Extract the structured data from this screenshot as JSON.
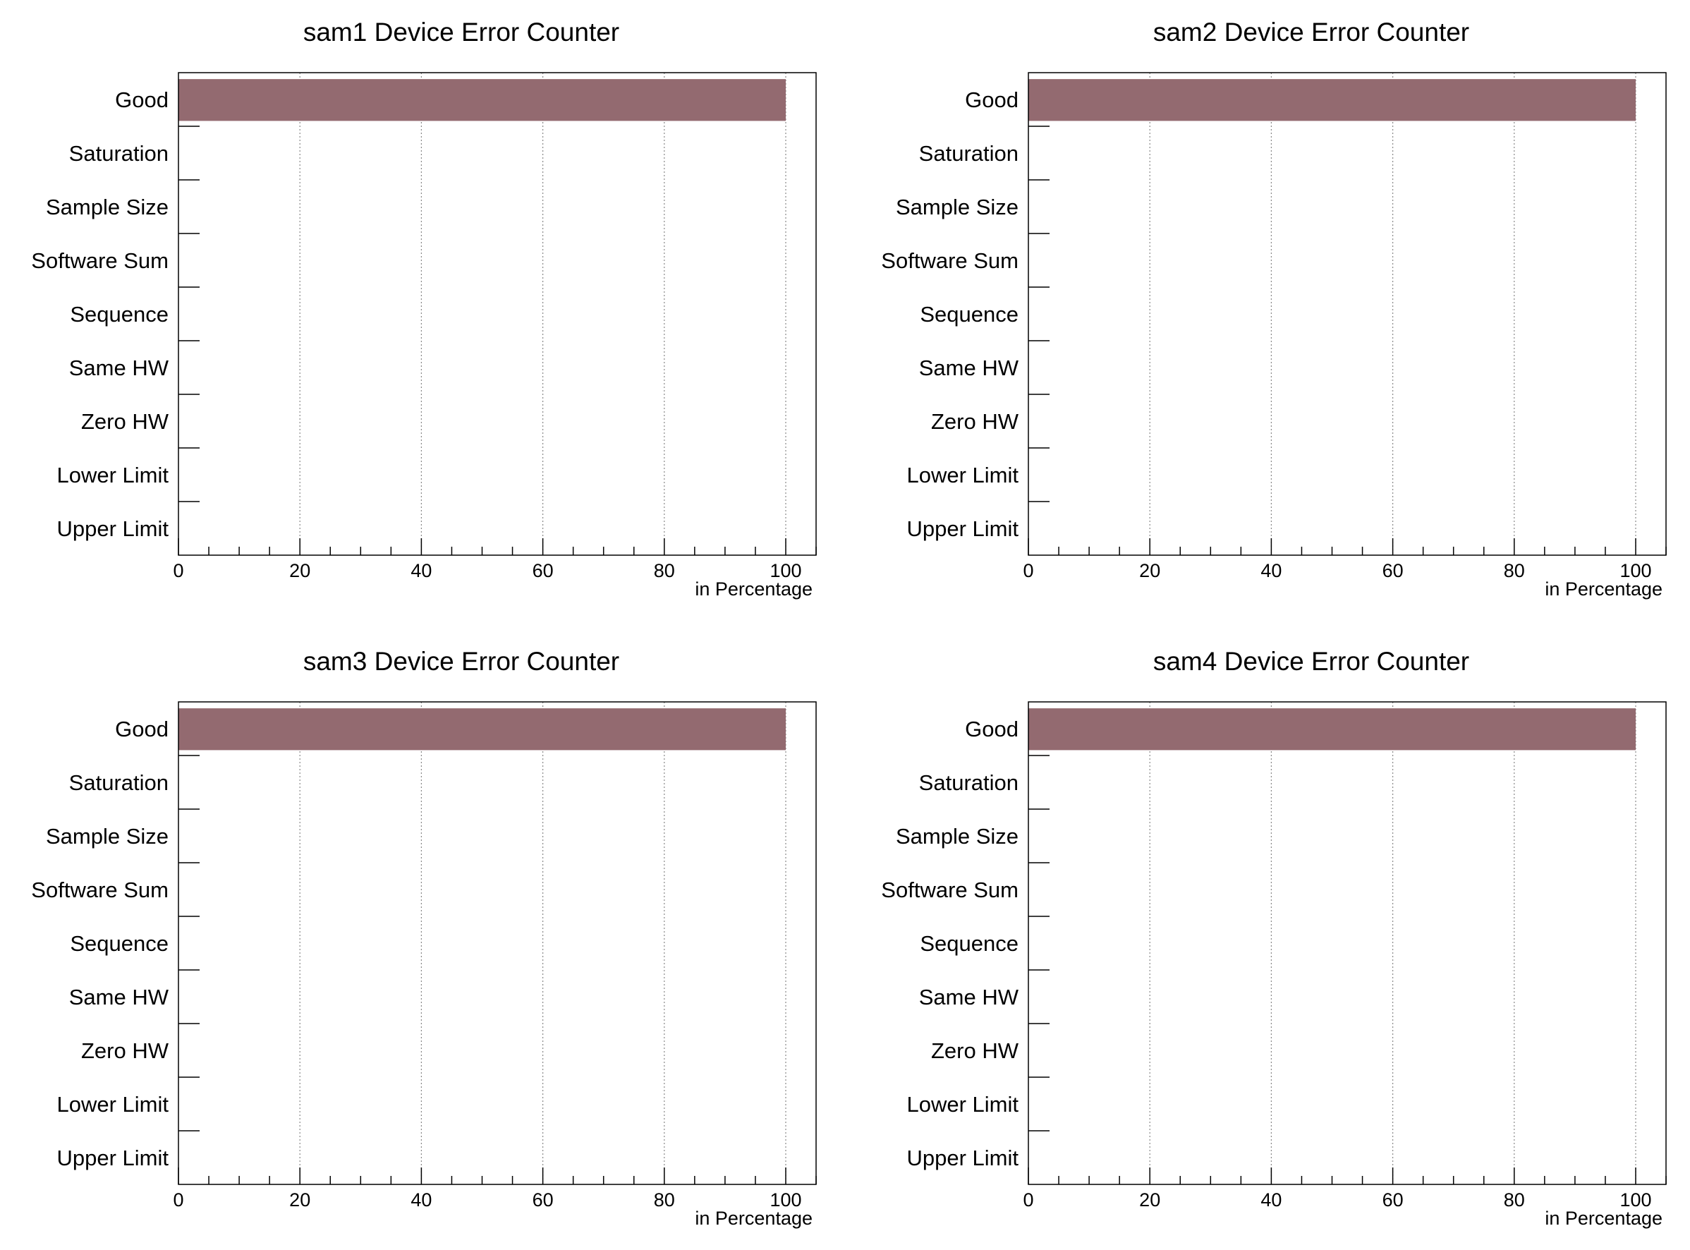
{
  "colors": {
    "bar": "#936a70",
    "background": "#ffffff",
    "frame": "#000000",
    "grid": "#888888"
  },
  "chart_data": [
    {
      "type": "bar",
      "orientation": "horizontal",
      "title": "sam1 Device  Error Counter",
      "categories": [
        "Good",
        "Saturation",
        "Sample Size",
        "Software Sum",
        "Sequence",
        "Same HW",
        "Zero HW",
        "Lower Limit",
        "Upper Limit"
      ],
      "values": [
        100,
        0,
        0,
        0,
        0,
        0,
        0,
        0,
        0
      ],
      "xlabel": "in Percentage",
      "xticks": [
        "0",
        "20",
        "40",
        "60",
        "80",
        "100"
      ],
      "xlim": [
        0,
        105
      ],
      "grid": "vertical dotted"
    },
    {
      "type": "bar",
      "orientation": "horizontal",
      "title": "sam2 Device  Error Counter",
      "categories": [
        "Good",
        "Saturation",
        "Sample Size",
        "Software Sum",
        "Sequence",
        "Same HW",
        "Zero HW",
        "Lower Limit",
        "Upper Limit"
      ],
      "values": [
        100,
        0,
        0,
        0,
        0,
        0,
        0,
        0,
        0
      ],
      "xlabel": "in Percentage",
      "xticks": [
        "0",
        "20",
        "40",
        "60",
        "80",
        "100"
      ],
      "xlim": [
        0,
        105
      ],
      "grid": "vertical dotted"
    },
    {
      "type": "bar",
      "orientation": "horizontal",
      "title": "sam3 Device  Error Counter",
      "categories": [
        "Good",
        "Saturation",
        "Sample Size",
        "Software Sum",
        "Sequence",
        "Same HW",
        "Zero HW",
        "Lower Limit",
        "Upper Limit"
      ],
      "values": [
        100,
        0,
        0,
        0,
        0,
        0,
        0,
        0,
        0
      ],
      "xlabel": "in Percentage",
      "xticks": [
        "0",
        "20",
        "40",
        "60",
        "80",
        "100"
      ],
      "xlim": [
        0,
        105
      ],
      "grid": "vertical dotted"
    },
    {
      "type": "bar",
      "orientation": "horizontal",
      "title": "sam4 Device  Error Counter",
      "categories": [
        "Good",
        "Saturation",
        "Sample Size",
        "Software Sum",
        "Sequence",
        "Same HW",
        "Zero HW",
        "Lower Limit",
        "Upper Limit"
      ],
      "values": [
        100,
        0,
        0,
        0,
        0,
        0,
        0,
        0,
        0
      ],
      "xlabel": "in Percentage",
      "xticks": [
        "0",
        "20",
        "40",
        "60",
        "80",
        "100"
      ],
      "xlim": [
        0,
        105
      ],
      "grid": "vertical dotted"
    }
  ]
}
